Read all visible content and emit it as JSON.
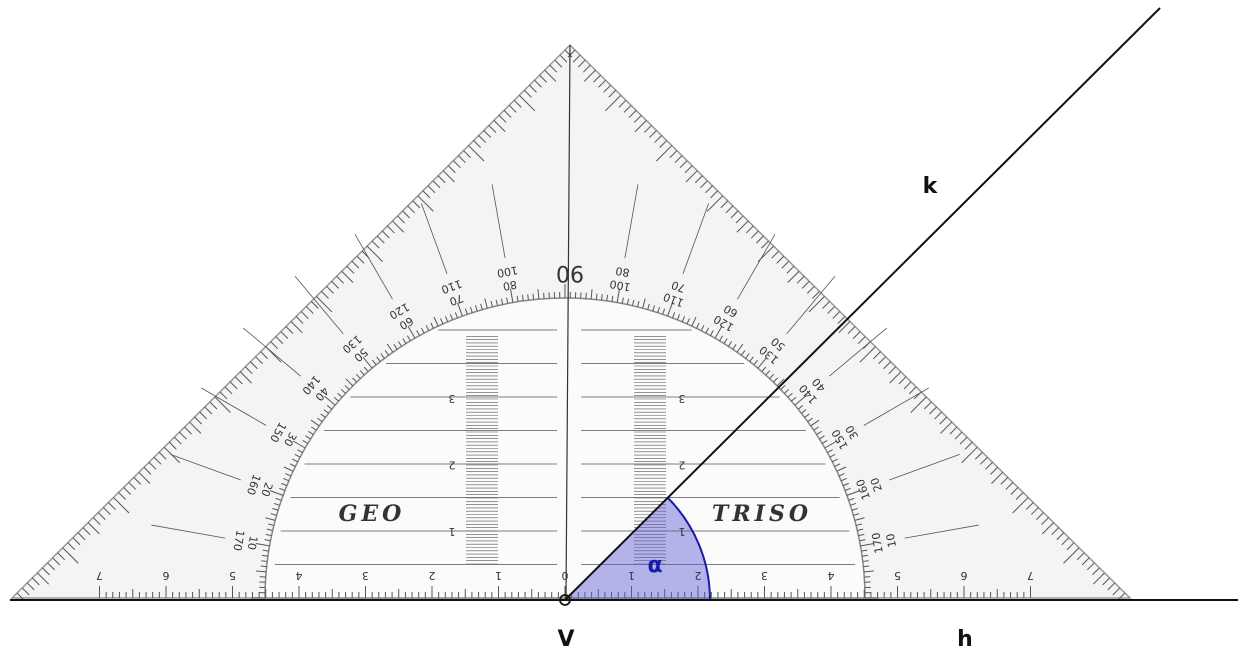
{
  "labels": {
    "ray_k": "k",
    "ray_h": "h",
    "vertex": "V",
    "angle": "α"
  },
  "set_square": {
    "apex_label": "90",
    "brand_left": "GEO",
    "brand_right": "TRISO",
    "protractor_outer": [
      "10",
      "20",
      "30",
      "40",
      "50",
      "60",
      "70",
      "80",
      "100",
      "110",
      "120",
      "130",
      "140",
      "150",
      "160",
      "170"
    ],
    "protractor_inner": [
      "170",
      "160",
      "150",
      "140",
      "130",
      "120",
      "110",
      "100",
      "80",
      "70",
      "60",
      "50",
      "40",
      "30",
      "20",
      "10"
    ],
    "ruler_zero": "0",
    "ruler_left": [
      "1",
      "2",
      "3",
      "4",
      "5",
      "6",
      "7"
    ],
    "ruler_right": [
      "1",
      "2",
      "3",
      "4",
      "5",
      "6",
      "7"
    ],
    "height_left": [
      "1",
      "2",
      "3"
    ],
    "height_right": [
      "1",
      "2",
      "3"
    ]
  }
}
